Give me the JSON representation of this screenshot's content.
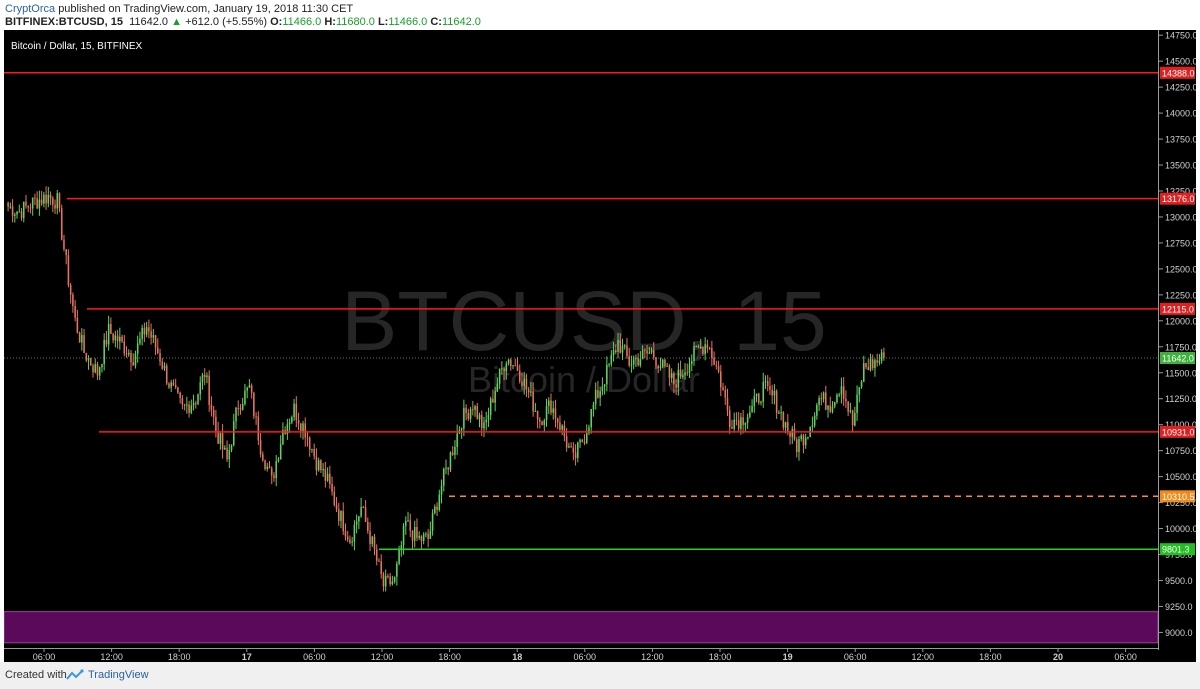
{
  "header": {
    "author": "CryptOrca",
    "published": "published on TradingView.com, January 19, 2018 11:30 CET",
    "symbol": "BITFINEX:BTCUSD, 15",
    "last": "11642.0",
    "change_arrow": "▲",
    "change": "+612.0 (+5.55%)",
    "o_label": "O:",
    "o_val": "11466.0",
    "h_label": "H:",
    "h_val": "11680.0",
    "l_label": "L:",
    "l_val": "11466.0",
    "c_label": "C:",
    "c_val": "11642.0"
  },
  "chart": {
    "legend": "Bitcoin / Dollar, 15, BITFINEX",
    "watermark_main": "BTCUSD, 15",
    "watermark_sub": "Bitcoin / Dollar"
  },
  "footer": {
    "created": "Created with",
    "brand": "TradingView"
  },
  "colors": {
    "up": "#5fd35f",
    "down": "#e8735f",
    "resistance": "#ff1a1a",
    "support": "#21d321",
    "dashed": "#ff8c1a",
    "zone": "#5b0a5b"
  },
  "chart_data": {
    "type": "candlestick",
    "y_range": [
      8850,
      14800
    ],
    "y_ticks": [
      "14750.0",
      "14500.0",
      "14250.0",
      "14000.0",
      "13750.0",
      "13500.0",
      "13250.0",
      "13000.0",
      "12750.0",
      "12500.0",
      "12250.0",
      "12000.0",
      "11750.0",
      "11500.0",
      "11250.0",
      "11000.0",
      "10750.0",
      "10500.0",
      "10250.0",
      "10000.0",
      "9750.0",
      "9500.0",
      "9250.0",
      "9000.0"
    ],
    "x_ticks": [
      "06:00",
      "12:00",
      "18:00",
      "17",
      "06:00",
      "12:00",
      "18:00",
      "18",
      "06:00",
      "12:00",
      "18:00",
      "19",
      "06:00",
      "12:00",
      "18:00",
      "20",
      "06:00"
    ],
    "levels": [
      {
        "value": 14388.0,
        "label": "14388.0",
        "kind": "resistance"
      },
      {
        "value": 13176.0,
        "label": "13176.0",
        "kind": "resistance"
      },
      {
        "value": 12115.0,
        "label": "12115.0",
        "kind": "resistance"
      },
      {
        "value": 11642.0,
        "label": "11642.0",
        "kind": "price"
      },
      {
        "value": 10931.0,
        "label": "10931.0",
        "kind": "resistance"
      },
      {
        "value": 10310.5,
        "label": "10310.5",
        "kind": "dashed"
      },
      {
        "value": 9801.3,
        "label": "9801.3",
        "kind": "support"
      }
    ],
    "zone": [
      8900,
      9200
    ],
    "anchors": [
      [
        0,
        13100
      ],
      [
        5,
        13050
      ],
      [
        12,
        13150
      ],
      [
        18,
        13200
      ],
      [
        22,
        13150
      ],
      [
        27,
        12400
      ],
      [
        30,
        12000
      ],
      [
        34,
        11700
      ],
      [
        40,
        11500
      ],
      [
        45,
        11900
      ],
      [
        50,
        11800
      ],
      [
        56,
        11650
      ],
      [
        62,
        11950
      ],
      [
        68,
        11650
      ],
      [
        72,
        11400
      ],
      [
        78,
        11150
      ],
      [
        84,
        11250
      ],
      [
        88,
        11500
      ],
      [
        93,
        10950
      ],
      [
        98,
        10650
      ],
      [
        103,
        11200
      ],
      [
        108,
        11350
      ],
      [
        113,
        10800
      ],
      [
        118,
        10450
      ],
      [
        123,
        10950
      ],
      [
        128,
        11150
      ],
      [
        133,
        10950
      ],
      [
        138,
        10650
      ],
      [
        143,
        10450
      ],
      [
        148,
        10150
      ],
      [
        153,
        9900
      ],
      [
        158,
        10200
      ],
      [
        163,
        9850
      ],
      [
        168,
        9450
      ],
      [
        173,
        9500
      ],
      [
        178,
        10050
      ],
      [
        183,
        9900
      ],
      [
        188,
        9900
      ],
      [
        193,
        10350
      ],
      [
        198,
        10700
      ],
      [
        203,
        11050
      ],
      [
        208,
        11200
      ],
      [
        213,
        10950
      ],
      [
        218,
        11350
      ],
      [
        223,
        11650
      ],
      [
        228,
        11550
      ],
      [
        233,
        11300
      ],
      [
        238,
        11050
      ],
      [
        243,
        11200
      ],
      [
        248,
        10950
      ],
      [
        253,
        10650
      ],
      [
        258,
        10900
      ],
      [
        263,
        11250
      ],
      [
        268,
        11500
      ],
      [
        273,
        11800
      ],
      [
        278,
        11600
      ],
      [
        283,
        11650
      ],
      [
        288,
        11700
      ],
      [
        293,
        11550
      ],
      [
        298,
        11400
      ],
      [
        303,
        11550
      ],
      [
        308,
        11700
      ],
      [
        313,
        11800
      ],
      [
        318,
        11500
      ],
      [
        323,
        11050
      ],
      [
        328,
        11050
      ],
      [
        333,
        11150
      ],
      [
        338,
        11350
      ],
      [
        343,
        11250
      ],
      [
        348,
        11000
      ],
      [
        353,
        10800
      ],
      [
        358,
        10950
      ],
      [
        363,
        11250
      ],
      [
        368,
        11200
      ],
      [
        373,
        11400
      ],
      [
        378,
        11000
      ],
      [
        383,
        11550
      ],
      [
        388,
        11600
      ],
      [
        392,
        11642
      ]
    ]
  }
}
